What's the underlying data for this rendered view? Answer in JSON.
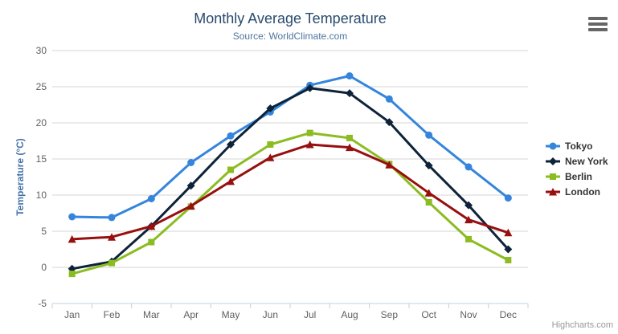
{
  "credits": "Highcharts.com",
  "palette": {
    "background": "#ffffff",
    "grid": "#d4d4d4",
    "axis_line": "#c0d0e0",
    "tick": "#c0d0e0",
    "axis_label": "#606060",
    "title": "#274b6d",
    "subtitle": "#4d759e",
    "y_axis_title": "#4572a7",
    "legend_text": "#333333",
    "credits": "#999999",
    "menu_icon": "#666666"
  },
  "chart_data": {
    "type": "line",
    "title": "Monthly Average Temperature",
    "subtitle": "Source: WorldClimate.com",
    "xlabel": "",
    "ylabel": "Temperature (°C)",
    "categories": [
      "Jan",
      "Feb",
      "Mar",
      "Apr",
      "May",
      "Jun",
      "Jul",
      "Aug",
      "Sep",
      "Oct",
      "Nov",
      "Dec"
    ],
    "ylim": [
      -5,
      30
    ],
    "ytick_step": 5,
    "yticks": [
      -5,
      0,
      5,
      10,
      15,
      20,
      25,
      30
    ],
    "grid": true,
    "legend_position": "right",
    "series": [
      {
        "name": "Tokyo",
        "color": "#3585dc",
        "marker": "circle",
        "values": [
          7.0,
          6.9,
          9.5,
          14.5,
          18.2,
          21.5,
          25.2,
          26.5,
          23.3,
          18.3,
          13.9,
          9.6
        ]
      },
      {
        "name": "New York",
        "color": "#0d233a",
        "marker": "diamond",
        "values": [
          -0.2,
          0.8,
          5.7,
          11.3,
          17.0,
          22.0,
          24.8,
          24.1,
          20.1,
          14.1,
          8.6,
          2.5
        ]
      },
      {
        "name": "Berlin",
        "color": "#8bbc21",
        "marker": "square",
        "values": [
          -0.9,
          0.6,
          3.5,
          8.4,
          13.5,
          17.0,
          18.6,
          17.9,
          14.3,
          9.0,
          3.9,
          1.0
        ]
      },
      {
        "name": "London",
        "color": "#970f0f",
        "marker": "triangle",
        "values": [
          3.9,
          4.2,
          5.7,
          8.5,
          11.9,
          15.2,
          17.0,
          16.6,
          14.2,
          10.3,
          6.6,
          4.8
        ]
      }
    ]
  }
}
